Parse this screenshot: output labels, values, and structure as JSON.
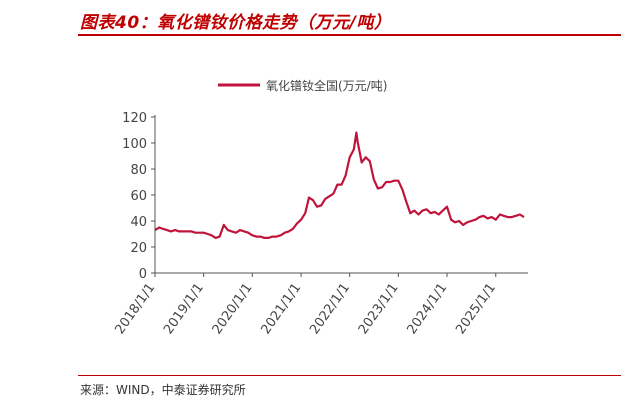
{
  "figure": {
    "title": "图表40：氧化镨钕价格走势（万元/吨）",
    "source": "来源：WIND，中泰证券研究所"
  },
  "chart_data": {
    "type": "line",
    "title": "",
    "xlabel": "",
    "ylabel": "",
    "ylim": [
      0,
      120
    ],
    "yticks": [
      0,
      20,
      40,
      60,
      80,
      100,
      120
    ],
    "xticks": [
      "2018/1/1",
      "2019/1/1",
      "2020/1/1",
      "2021/1/1",
      "2022/1/1",
      "2023/1/1",
      "2024/1/1",
      "2025/1/1"
    ],
    "xlim": [
      "2018/1/1",
      "2025/8/31"
    ],
    "grid": false,
    "legend": "top-center",
    "colors": {
      "series": "#c0143c"
    },
    "series": [
      {
        "name": "氧化镨钕全国(万元/吨)",
        "x": [
          "2018/1/1",
          "2018/2/1",
          "2018/3/1",
          "2018/4/1",
          "2018/5/1",
          "2018/6/1",
          "2018/7/1",
          "2018/8/1",
          "2018/9/1",
          "2018/10/1",
          "2018/11/1",
          "2018/12/1",
          "2019/1/1",
          "2019/2/1",
          "2019/3/1",
          "2019/4/1",
          "2019/5/1",
          "2019/6/1",
          "2019/7/1",
          "2019/8/1",
          "2019/9/1",
          "2019/10/1",
          "2019/11/1",
          "2019/12/1",
          "2020/1/1",
          "2020/2/1",
          "2020/3/1",
          "2020/4/1",
          "2020/5/1",
          "2020/6/1",
          "2020/7/1",
          "2020/8/1",
          "2020/9/1",
          "2020/10/1",
          "2020/11/1",
          "2020/12/1",
          "2021/1/1",
          "2021/2/1",
          "2021/2/15",
          "2021/3/1",
          "2021/4/1",
          "2021/5/1",
          "2021/6/1",
          "2021/7/1",
          "2021/8/1",
          "2021/9/1",
          "2021/10/1",
          "2021/11/1",
          "2021/12/1",
          "2022/1/1",
          "2022/2/1",
          "2022/2/20",
          "2022/3/1",
          "2022/4/1",
          "2022/5/1",
          "2022/6/1",
          "2022/7/1",
          "2022/8/1",
          "2022/9/1",
          "2022/10/1",
          "2022/11/1",
          "2022/12/1",
          "2023/1/1",
          "2023/2/1",
          "2023/3/1",
          "2023/4/1",
          "2023/5/1",
          "2023/6/1",
          "2023/7/1",
          "2023/8/1",
          "2023/9/1",
          "2023/10/1",
          "2023/11/1",
          "2023/12/1",
          "2024/1/1",
          "2024/2/1",
          "2024/3/1",
          "2024/4/1",
          "2024/5/1",
          "2024/6/1",
          "2024/7/1",
          "2024/8/1",
          "2024/9/1",
          "2024/10/1",
          "2024/11/1",
          "2024/12/1",
          "2025/1/1",
          "2025/2/1",
          "2025/3/1",
          "2025/4/1",
          "2025/5/1",
          "2025/6/1",
          "2025/7/1",
          "2025/8/1"
        ],
        "values": [
          33,
          35,
          34,
          33,
          32,
          33,
          32,
          32,
          32,
          32,
          31,
          31,
          31,
          30,
          29,
          27,
          28,
          37,
          33,
          32,
          31,
          33,
          32,
          31,
          29,
          28,
          28,
          27,
          27,
          28,
          28,
          29,
          31,
          32,
          34,
          38,
          41,
          46,
          52,
          58,
          56,
          51,
          52,
          57,
          59,
          61,
          68,
          68,
          75,
          89,
          95,
          108,
          101,
          85,
          89,
          86,
          72,
          65,
          66,
          70,
          70,
          71,
          71,
          64,
          55,
          46,
          48,
          45,
          48,
          49,
          46,
          47,
          45,
          48,
          51,
          41,
          39,
          40,
          37,
          39,
          40,
          41,
          43,
          44,
          42,
          43,
          41,
          45,
          44,
          43,
          43,
          44,
          45,
          43
        ]
      }
    ]
  }
}
